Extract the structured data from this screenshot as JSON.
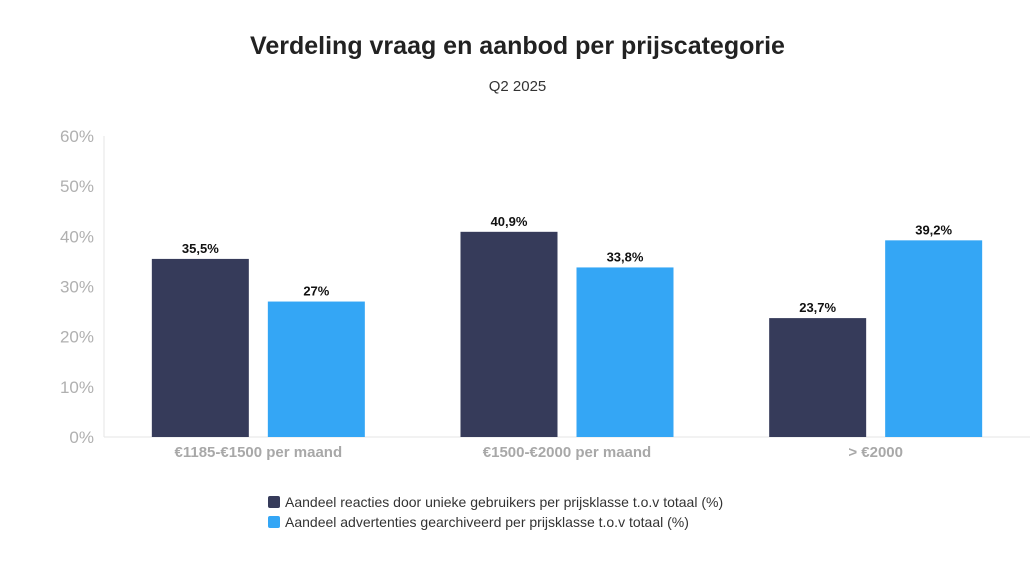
{
  "chart_data": {
    "type": "bar",
    "title": "Verdeling vraag en aanbod per prijscategorie",
    "subtitle": "Q2 2025",
    "categories": [
      "€1185-€1500 per maand",
      "€1500-€2000 per maand",
      "> €2000"
    ],
    "series": [
      {
        "name": "Aandeel reacties door unieke gebruikers per prijsklasse t.o.v totaal (%)",
        "color": "#363b5a",
        "values": [
          35.5,
          40.9,
          23.7
        ],
        "labels": [
          "35,5%",
          "40,9%",
          "23,7%"
        ]
      },
      {
        "name": "Aandeel advertenties gearchiveerd per prijsklasse t.o.v totaal (%)",
        "color": "#34a6f5",
        "values": [
          27,
          33.8,
          39.2
        ],
        "labels": [
          "27%",
          "33,8%",
          "39,2%"
        ]
      }
    ],
    "ylim": [
      0,
      60
    ],
    "yticks": [
      0,
      10,
      20,
      30,
      40,
      50,
      60
    ],
    "ytick_labels": [
      "0%",
      "10%",
      "20%",
      "30%",
      "40%",
      "50%",
      "60%"
    ],
    "grid": false,
    "legend_position": "bottom"
  }
}
